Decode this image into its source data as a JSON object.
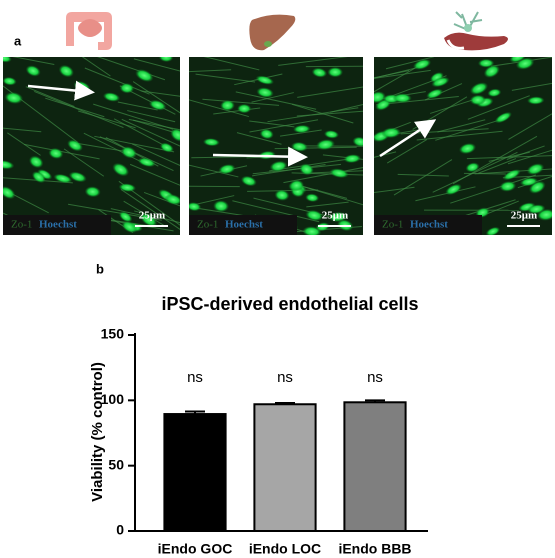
{
  "panel_a": {
    "label": "a",
    "images": [
      {
        "stain_1": "Zo-1",
        "stain_2": "Hoechst",
        "scale": "25μm"
      },
      {
        "stain_1": "Zo-1",
        "stain_2": "Hoechst",
        "scale": "25μm"
      },
      {
        "stain_1": "Zo-1",
        "stain_2": "Hoechst",
        "scale": "25μm"
      }
    ]
  },
  "chart_data": {
    "type": "bar",
    "panel_label": "b",
    "title": "iPSC-derived endothelial cells",
    "y_label": "Viability (% control)",
    "categories": [
      "iEndo GOC",
      "iEndo LOC",
      "iEndo BBB"
    ],
    "values": [
      89.5,
      97,
      98.5
    ],
    "errors": [
      2,
      1,
      1.5
    ],
    "colors": [
      "#000000",
      "#a6a6a6",
      "#7f7f7f"
    ],
    "annotations": [
      "ns",
      "ns",
      "ns"
    ],
    "ylim": [
      0,
      150
    ],
    "yticks": [
      0,
      50,
      100,
      150
    ]
  }
}
